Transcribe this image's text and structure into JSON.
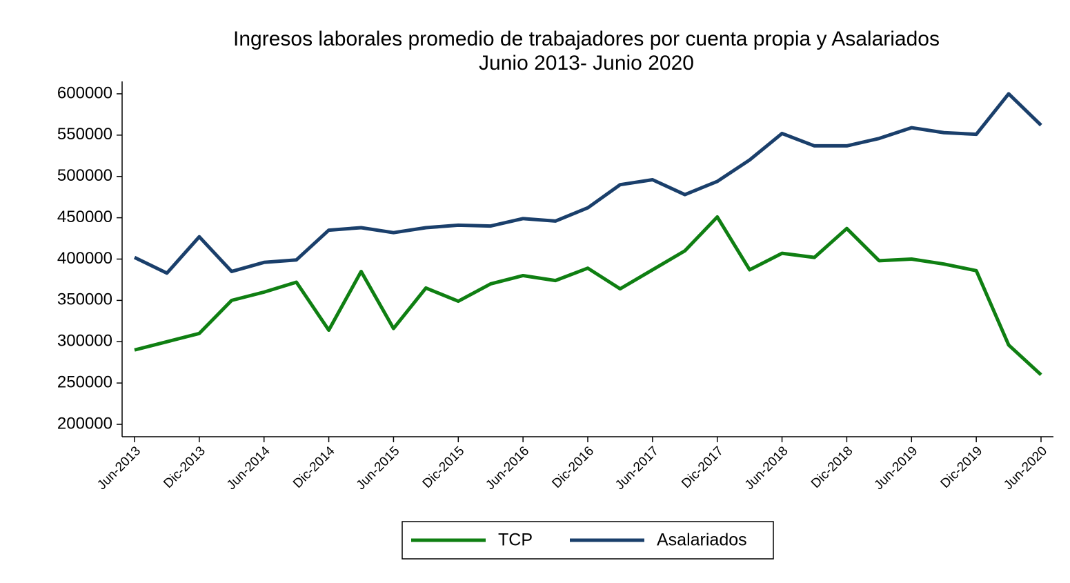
{
  "chart_data": {
    "type": "line",
    "title": "Ingresos laborales promedio de trabajadores por cuenta propia y Asalariados",
    "subtitle": "Junio 2013- Junio 2020",
    "categories": [
      "Jun-2013",
      null,
      "Dic-2013",
      null,
      "Jun-2014",
      null,
      "Dic-2014",
      null,
      "Jun-2015",
      null,
      "Dic-2015",
      null,
      "Jun-2016",
      null,
      "Dic-2016",
      null,
      "Jun-2017",
      null,
      "Dic-2017",
      null,
      "Jun-2018",
      null,
      "Dic-2018",
      null,
      "Jun-2019",
      null,
      "Dic-2019",
      null,
      "Jun-2020"
    ],
    "series": [
      {
        "name": "TCP",
        "color": "#0f7f12",
        "values": [
          290000,
          300000,
          310000,
          350000,
          360000,
          372000,
          314000,
          385000,
          316000,
          365000,
          349000,
          370000,
          380000,
          374000,
          389000,
          364000,
          387000,
          410000,
          451000,
          387000,
          407000,
          402000,
          437000,
          398000,
          400000,
          394000,
          386000,
          296000,
          260000
        ]
      },
      {
        "name": "Asalariados",
        "color": "#1a3f6b",
        "values": [
          402000,
          383000,
          427000,
          385000,
          396000,
          399000,
          435000,
          438000,
          432000,
          438000,
          441000,
          440000,
          449000,
          446000,
          462000,
          490000,
          496000,
          478000,
          494000,
          520000,
          552000,
          537000,
          537000,
          546000,
          559000,
          553000,
          551000,
          600000,
          562000
        ]
      }
    ],
    "ylim": [
      185000,
      615000
    ],
    "yticks": [
      200000,
      250000,
      300000,
      350000,
      400000,
      450000,
      500000,
      550000,
      600000
    ],
    "grid": false,
    "legend": "bottom"
  }
}
